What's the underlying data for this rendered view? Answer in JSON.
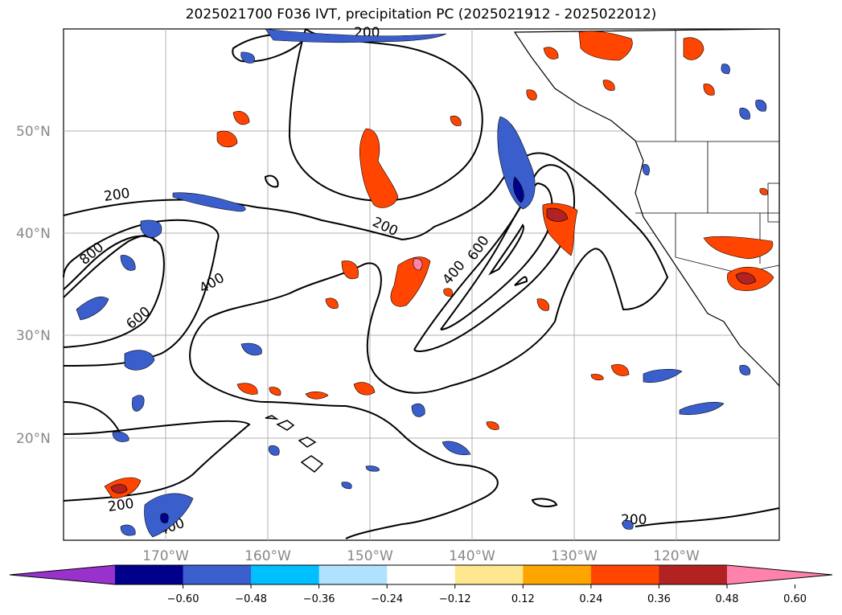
{
  "title": "2025021700 F036 IVT, precipitation PC (2025021912 - 2025022012)",
  "latitude_labels": [
    "50°N",
    "40°N",
    "30°N",
    "20°N"
  ],
  "longitude_labels": [
    "170°W",
    "160°W",
    "150°W",
    "140°W",
    "130°W",
    "120°W"
  ],
  "contour_labels": [
    "200",
    "800",
    "600",
    "400",
    "200",
    "400",
    "600",
    "200",
    "200",
    "400",
    "200"
  ],
  "colorbar": {
    "ticks": [
      "−0.60",
      "−0.48",
      "−0.36",
      "−0.24",
      "−0.12",
      "0.12",
      "0.24",
      "0.36",
      "0.48",
      "0.60"
    ],
    "colors": [
      "#9932cc",
      "#00008b",
      "#3a5fcd",
      "#00bfff",
      "#b0e2ff",
      "#ffffff",
      "#ffe78f",
      "#ffa500",
      "#ff4500",
      "#b22222",
      "#ff82ab"
    ]
  }
}
